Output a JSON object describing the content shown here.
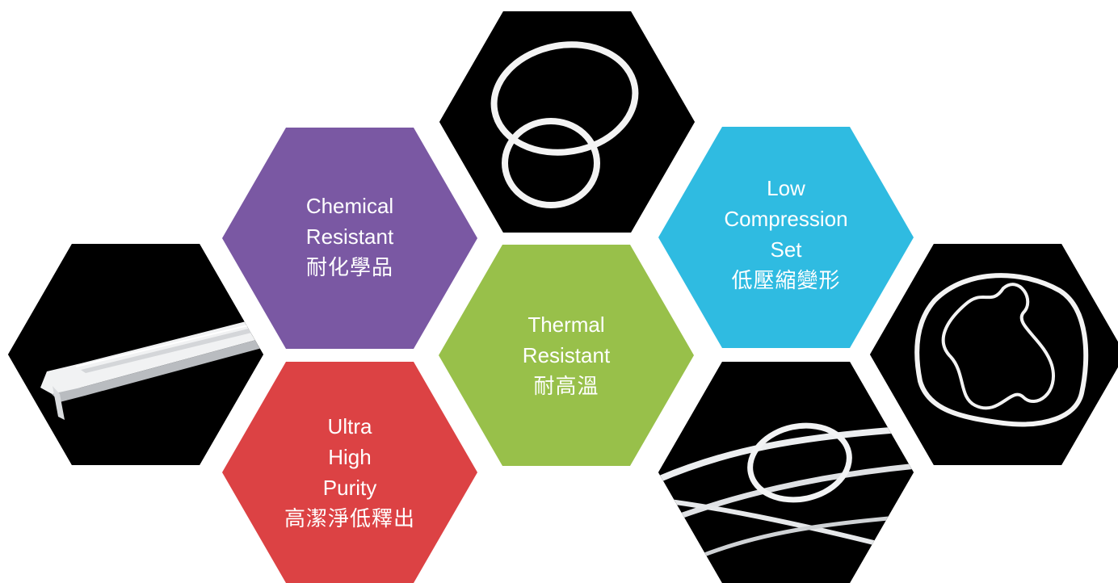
{
  "colors": {
    "chemical": "#7a58a3",
    "purity": "#dc4244",
    "thermal": "#98c04a",
    "compression": "#2fbbe1",
    "photo_bg": "#000000",
    "tube": "#eceef0"
  },
  "tiles": {
    "chemical": {
      "lines": [
        "Chemical",
        "Resistant",
        "耐化學品"
      ]
    },
    "thermal": {
      "lines": [
        "Thermal",
        "Resistant",
        "耐高溫"
      ]
    },
    "purity": {
      "lines": [
        "Ultra",
        "High",
        "Purity",
        "高潔淨低釋出"
      ]
    },
    "compression": {
      "lines": [
        "Low",
        "Compression",
        "Set",
        "低壓縮變形"
      ]
    }
  },
  "photos": [
    "flat-tube-photo",
    "o-rings-photo",
    "wire-loops-photo",
    "irregular-loop-photo"
  ]
}
